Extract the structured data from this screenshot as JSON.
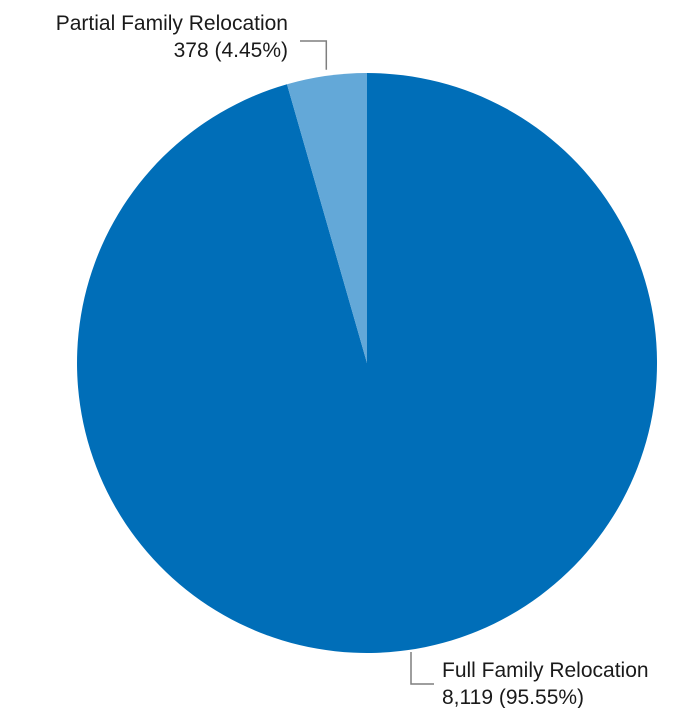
{
  "chart_data": {
    "type": "pie",
    "slices": [
      {
        "category": "Full Family Relocation",
        "value": 8119,
        "value_label": "8,119 (95.55%)",
        "percent": 95.55,
        "color": "#006EB8"
      },
      {
        "category": "Partial Family Relocation",
        "value": 378,
        "value_label": "378 (4.45%)",
        "percent": 4.45,
        "color": "#63A8D8"
      }
    ],
    "start": "12 o'clock",
    "direction": "clockwise",
    "legend": "none"
  }
}
